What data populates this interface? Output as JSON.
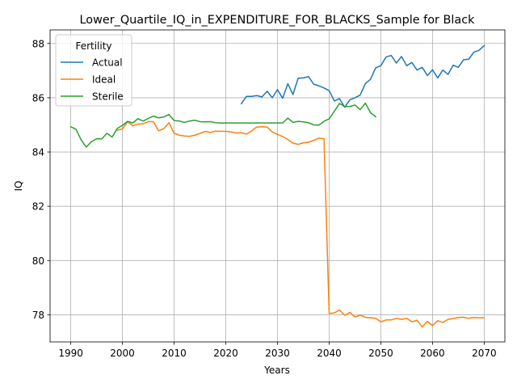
{
  "chart_data": {
    "type": "line",
    "title": "Lower_Quartile_IQ_in_EXPENDITURE_FOR_BLACKS_Sample for Black",
    "xlabel": "Years",
    "ylabel": "IQ",
    "xlim": [
      1986.0,
      2074.0
    ],
    "ylim": [
      77.0,
      88.5
    ],
    "xticks": [
      1990,
      2000,
      2010,
      2020,
      2030,
      2040,
      2050,
      2060,
      2070
    ],
    "yticks": [
      78,
      80,
      82,
      84,
      86,
      88
    ],
    "grid": true,
    "legend": {
      "title": "Fertility",
      "placement": "upper-left"
    },
    "series": [
      {
        "name": "Actual",
        "color": "#1f77b4",
        "x": [
          2023,
          2024,
          2025,
          2026,
          2027,
          2028,
          2029,
          2030,
          2031,
          2032,
          2033,
          2034,
          2035,
          2036,
          2037,
          2038,
          2039,
          2040,
          2041,
          2042,
          2043,
          2044,
          2045,
          2046,
          2047,
          2048,
          2049,
          2050,
          2051,
          2052,
          2053,
          2054,
          2055,
          2056,
          2057,
          2058,
          2059,
          2060,
          2061,
          2062,
          2063,
          2064,
          2065,
          2066,
          2067,
          2068,
          2069,
          2070
        ],
        "y": [
          85.78,
          86.05,
          86.05,
          86.08,
          86.03,
          86.24,
          86.0,
          86.3,
          85.98,
          86.52,
          86.12,
          86.72,
          86.73,
          86.78,
          86.5,
          86.44,
          86.36,
          86.26,
          85.88,
          85.97,
          85.65,
          85.92,
          86.0,
          86.1,
          86.52,
          86.68,
          87.1,
          87.18,
          87.5,
          87.56,
          87.28,
          87.52,
          87.18,
          87.3,
          87.02,
          87.12,
          86.82,
          87.03,
          86.73,
          87.02,
          86.86,
          87.2,
          87.12,
          87.4,
          87.42,
          87.68,
          87.75,
          87.92
        ]
      },
      {
        "name": "Ideal",
        "color": "#ff7f0e",
        "x": [
          1999,
          2000,
          2001,
          2002,
          2003,
          2004,
          2005,
          2006,
          2007,
          2008,
          2009,
          2010,
          2011,
          2012,
          2013,
          2014,
          2015,
          2016,
          2017,
          2018,
          2019,
          2020,
          2021,
          2022,
          2023,
          2024,
          2025,
          2026,
          2027,
          2028,
          2029,
          2030,
          2031,
          2032,
          2033,
          2034,
          2035,
          2036,
          2037,
          2038,
          2039,
          2040,
          2041,
          2042,
          2043,
          2044,
          2045,
          2046,
          2047,
          2048,
          2049,
          2050,
          2051,
          2052,
          2053,
          2054,
          2055,
          2056,
          2057,
          2058,
          2059,
          2060,
          2061,
          2062,
          2063,
          2064,
          2065,
          2066,
          2067,
          2068,
          2069,
          2070
        ],
        "y": [
          84.8,
          84.85,
          85.12,
          84.97,
          85.03,
          85.04,
          85.12,
          85.12,
          84.78,
          84.86,
          85.08,
          84.69,
          84.62,
          84.59,
          84.58,
          84.62,
          84.68,
          84.76,
          84.72,
          84.77,
          84.76,
          84.76,
          84.74,
          84.7,
          84.71,
          84.66,
          84.78,
          84.92,
          84.93,
          84.92,
          84.74,
          84.65,
          84.57,
          84.46,
          84.33,
          84.28,
          84.34,
          84.36,
          84.43,
          84.51,
          84.49,
          78.05,
          78.07,
          78.18,
          77.98,
          78.09,
          77.92,
          77.99,
          77.91,
          77.89,
          77.87,
          77.74,
          77.81,
          77.81,
          77.87,
          77.83,
          77.87,
          77.74,
          77.8,
          77.55,
          77.76,
          77.6,
          77.78,
          77.72,
          77.83,
          77.86,
          77.9,
          77.91,
          77.87,
          77.9,
          77.89,
          77.89
        ]
      },
      {
        "name": "Sterile",
        "color": "#2ca02c",
        "x": [
          1990,
          1991,
          1992,
          1993,
          1994,
          1995,
          1996,
          1997,
          1998,
          1999,
          2000,
          2001,
          2002,
          2003,
          2004,
          2005,
          2006,
          2007,
          2008,
          2009,
          2010,
          2011,
          2012,
          2013,
          2014,
          2015,
          2016,
          2017,
          2018,
          2019,
          2020,
          2021,
          2022,
          2023,
          2024,
          2025,
          2026,
          2027,
          2028,
          2029,
          2030,
          2031,
          2032,
          2033,
          2034,
          2035,
          2036,
          2037,
          2038,
          2039,
          2040,
          2041,
          2042,
          2043,
          2044,
          2045,
          2046,
          2047,
          2048,
          2049
        ],
        "y": [
          84.93,
          84.84,
          84.45,
          84.18,
          84.38,
          84.49,
          84.48,
          84.69,
          84.55,
          84.87,
          84.98,
          85.13,
          85.07,
          85.23,
          85.14,
          85.24,
          85.32,
          85.26,
          85.29,
          85.38,
          85.16,
          85.14,
          85.09,
          85.14,
          85.17,
          85.12,
          85.11,
          85.12,
          85.08,
          85.07,
          85.07,
          85.07,
          85.07,
          85.07,
          85.07,
          85.07,
          85.07,
          85.07,
          85.07,
          85.07,
          85.07,
          85.07,
          85.25,
          85.09,
          85.13,
          85.11,
          85.08,
          85.0,
          84.99,
          85.13,
          85.22,
          85.5,
          85.79,
          85.67,
          85.68,
          85.73,
          85.56,
          85.8,
          85.45,
          85.3
        ]
      }
    ]
  }
}
